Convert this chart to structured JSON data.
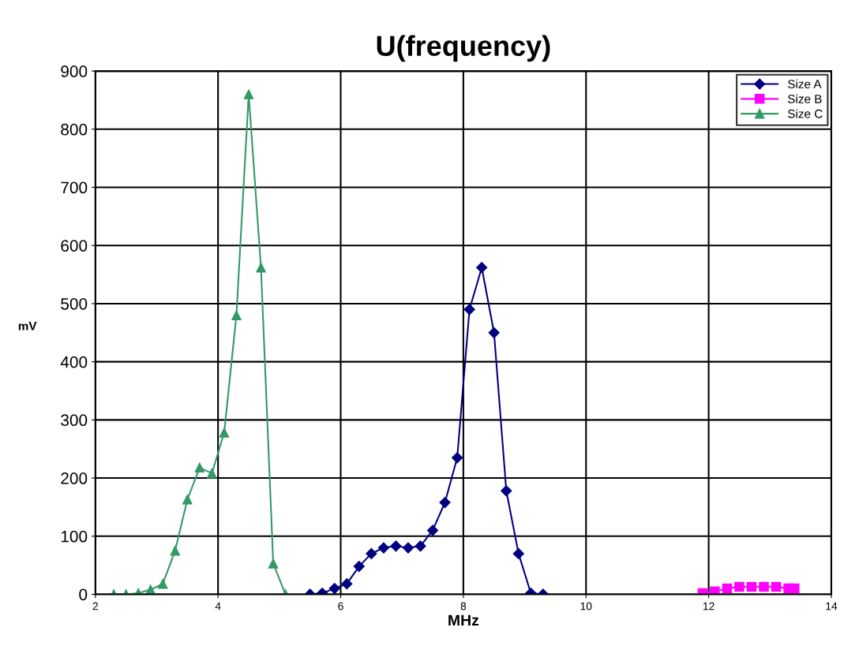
{
  "chart_data": {
    "type": "line",
    "title": "U(frequency)",
    "xlabel": "MHz",
    "ylabel": "mV",
    "xlim": [
      2,
      14
    ],
    "xticks": [
      2,
      4,
      6,
      8,
      10,
      12,
      14
    ],
    "ylim": [
      0,
      900
    ],
    "yticks": [
      0,
      100,
      200,
      300,
      400,
      500,
      600,
      700,
      800,
      900
    ],
    "grid": true,
    "legend": "top right",
    "line_style": "solid",
    "series": [
      {
        "name": "Size A",
        "color": "#000080",
        "marker": "diamond",
        "x": [
          5.5,
          5.7,
          5.9,
          6.1,
          6.3,
          6.5,
          6.7,
          6.9,
          7.1,
          7.3,
          7.5,
          7.7,
          7.9,
          8.1,
          8.3,
          8.5,
          8.7,
          8.9,
          9.1,
          9.3
        ],
        "values": [
          0,
          2,
          10,
          18,
          48,
          70,
          80,
          83,
          80,
          83,
          110,
          158,
          235,
          490,
          562,
          450,
          178,
          70,
          2,
          0
        ]
      },
      {
        "name": "Size B",
        "color": "#ff00ff",
        "marker": "square",
        "x": [
          11.9,
          12.1,
          12.3,
          12.5,
          12.7,
          12.9,
          13.1,
          13.3,
          13.4
        ],
        "values": [
          2,
          5,
          10,
          13,
          13,
          13,
          13,
          10,
          10
        ]
      },
      {
        "name": "Size C",
        "color": "#339966",
        "marker": "triangle",
        "x": [
          2.3,
          2.5,
          2.7,
          2.9,
          3.1,
          3.3,
          3.5,
          3.7,
          3.9,
          4.1,
          4.3,
          4.5,
          4.7,
          4.9,
          5.1
        ],
        "values": [
          0,
          0,
          2,
          8,
          18,
          75,
          163,
          218,
          208,
          278,
          480,
          860,
          562,
          53,
          0
        ]
      }
    ]
  }
}
